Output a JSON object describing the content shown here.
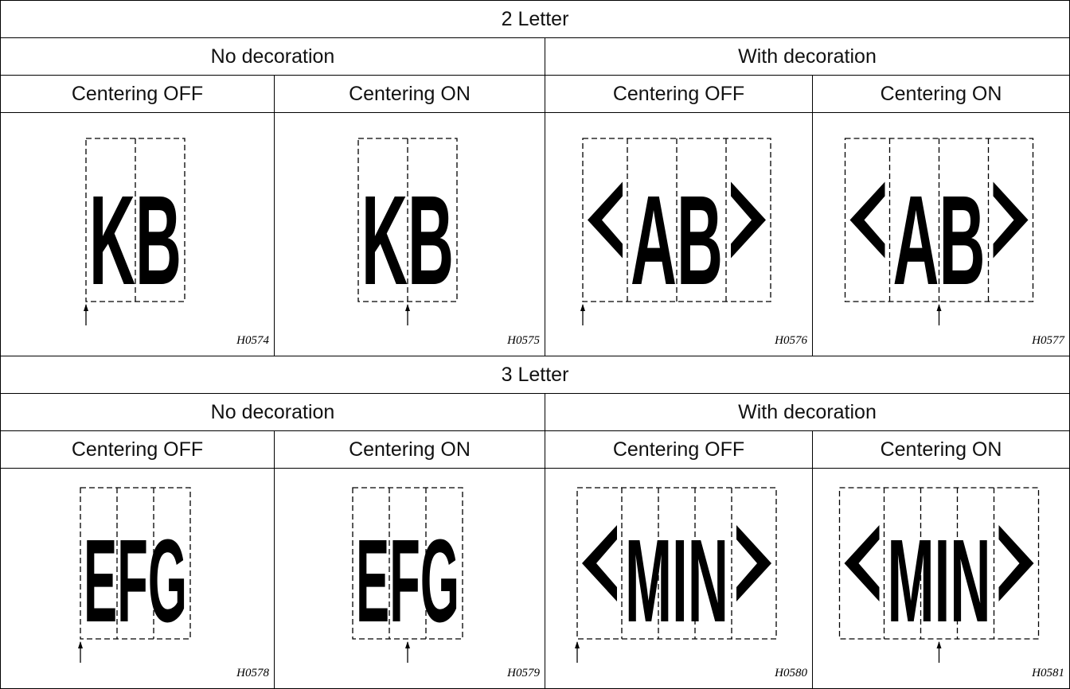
{
  "sections": [
    {
      "title": "2 Letter",
      "groups": [
        "No decoration",
        "With decoration"
      ],
      "headers": [
        "Centering OFF",
        "Centering ON",
        "Centering OFF",
        "Centering ON"
      ],
      "figures": [
        {
          "letters": "KB",
          "code": "H0574"
        },
        {
          "letters": "KB",
          "code": "H0575"
        },
        {
          "letters": "AB",
          "code": "H0576"
        },
        {
          "letters": "AB",
          "code": "H0577"
        }
      ]
    },
    {
      "title": "3 Letter",
      "groups": [
        "No decoration",
        "With decoration"
      ],
      "headers": [
        "Centering OFF",
        "Centering ON",
        "Centering OFF",
        "Centering ON"
      ],
      "figures": [
        {
          "letters": "EFG",
          "code": "H0578"
        },
        {
          "letters": "EFG",
          "code": "H0579"
        },
        {
          "letters": "MIN",
          "code": "H0580"
        },
        {
          "letters": "MIN",
          "code": "H0581"
        }
      ]
    }
  ]
}
